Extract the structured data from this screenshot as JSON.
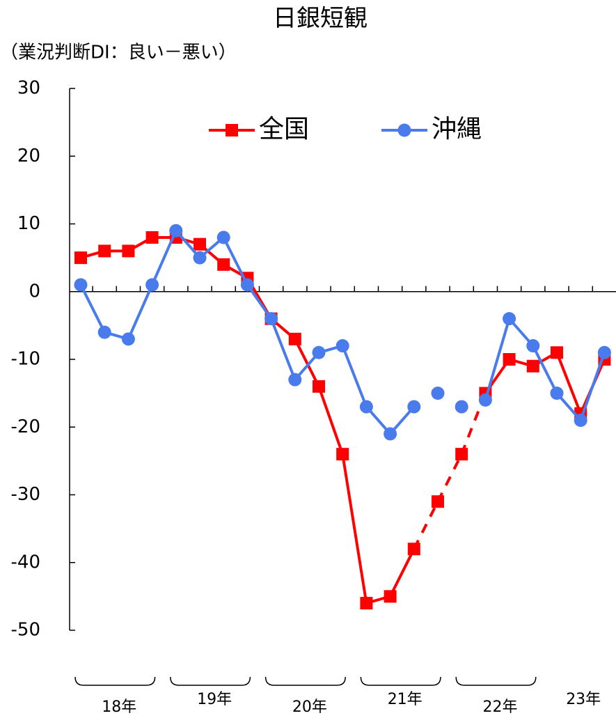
{
  "chart_data": {
    "type": "line",
    "title": "日銀短観",
    "subtitle": "（業況判断DI：良い－悪い）",
    "categories": [
      null,
      null,
      null,
      null,
      null,
      null,
      null,
      null,
      null,
      null,
      null,
      null,
      null,
      null,
      null,
      null,
      null,
      null,
      null,
      null,
      null,
      null,
      null
    ],
    "series": [
      {
        "name": "全国",
        "color": "#ff0000",
        "marker": "square",
        "dashed_segments": [
          14,
          15,
          16
        ],
        "values": [
          5,
          6,
          6,
          8,
          8,
          7,
          4,
          2,
          -4,
          -7,
          -14,
          -24,
          -46,
          -45,
          -38,
          -31,
          -24,
          -15,
          -10,
          -11,
          -9,
          -18,
          -10
        ]
      },
      {
        "name": "沖縄",
        "color": "#4a7bec",
        "marker": "circle",
        "unconnected_segments": [
          14,
          15,
          16
        ],
        "values": [
          1,
          -6,
          -7,
          1,
          9,
          5,
          8,
          1,
          -4,
          -13,
          -9,
          -8,
          -17,
          -21,
          -17,
          -15,
          -17,
          -16,
          -4,
          -8,
          -15,
          -19,
          -9
        ]
      }
    ],
    "ylim": [
      -50,
      30
    ],
    "yticks": [
      30,
      20,
      10,
      0,
      -10,
      -20,
      -30,
      -40,
      -50
    ],
    "year_groups": [
      {
        "label": "18年",
        "start": 0,
        "end": 3,
        "brace": true
      },
      {
        "label": "19年",
        "start": 4,
        "end": 7,
        "brace": true
      },
      {
        "label": "20年",
        "start": 8,
        "end": 11,
        "brace": true
      },
      {
        "label": "21年",
        "start": 12,
        "end": 15,
        "brace": true
      },
      {
        "label": "22年",
        "start": 16,
        "end": 19,
        "brace": true
      },
      {
        "label": "23年",
        "start": 20,
        "end": 22,
        "brace": false
      }
    ],
    "legend": "top"
  }
}
